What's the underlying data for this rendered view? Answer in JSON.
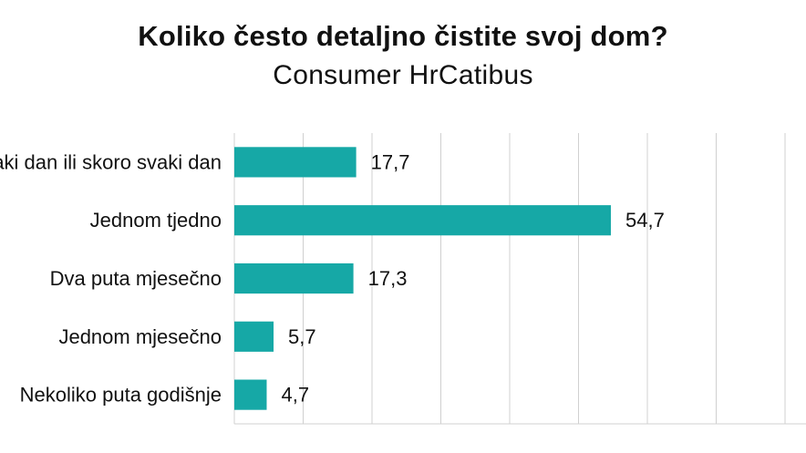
{
  "chart_data": {
    "type": "bar",
    "orientation": "horizontal",
    "title": "Koliko često detaljno čistite svoj dom?",
    "subtitle": "Consumer HrCatibus",
    "categories": [
      "Svaki dan ili skoro svaki dan",
      "Jednom tjedno",
      "Dva puta mjesečno",
      "Jednom mjesečno",
      "Nekoliko puta godišnje"
    ],
    "values": [
      17.7,
      54.7,
      17.3,
      5.7,
      4.7
    ],
    "value_labels": [
      "17,7",
      "54,7",
      "17,3",
      "5,7",
      "4,7"
    ],
    "xlim": [
      0,
      100
    ],
    "grid": true,
    "bar_color": "#16a8a6",
    "grid_color": "#d0d0d0"
  }
}
